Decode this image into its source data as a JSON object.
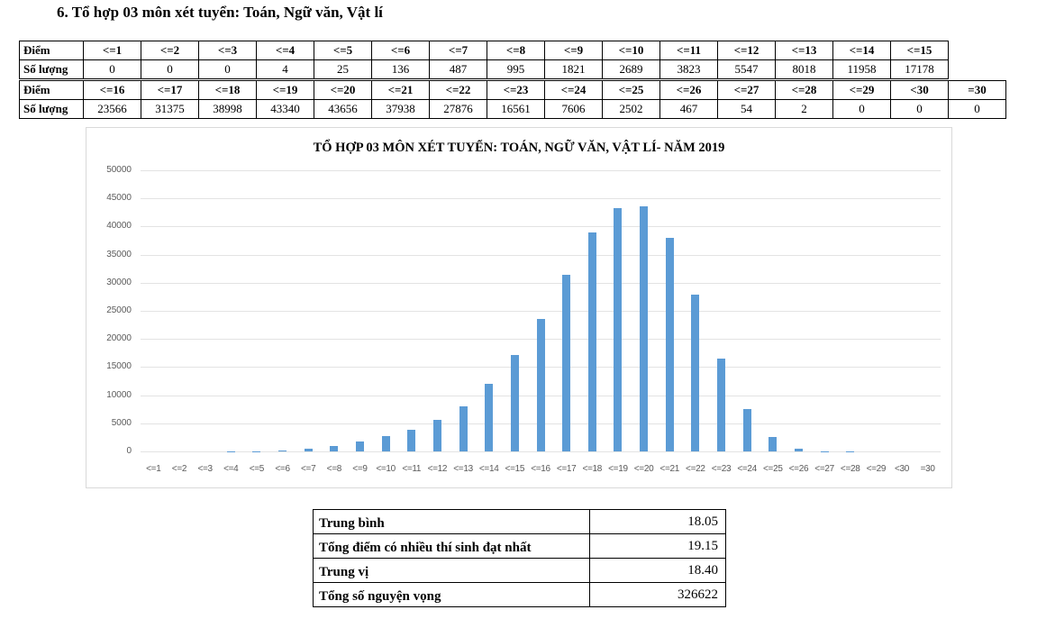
{
  "heading": "6. Tổ hợp 03 môn xét tuyển: Toán, Ngữ văn, Vật lí",
  "score_table": {
    "row_label_score": "Điểm",
    "row_label_count": "Số lượng",
    "top": {
      "scores": [
        "<=1",
        "<=2",
        "<=3",
        "<=4",
        "<=5",
        "<=6",
        "<=7",
        "<=8",
        "<=9",
        "<=10",
        "<=11",
        "<=12",
        "<=13",
        "<=14",
        "<=15"
      ],
      "counts": [
        "0",
        "0",
        "0",
        "4",
        "25",
        "136",
        "487",
        "995",
        "1821",
        "2689",
        "3823",
        "5547",
        "8018",
        "11958",
        "17178"
      ]
    },
    "bottom": {
      "scores": [
        "<=16",
        "<=17",
        "<=18",
        "<=19",
        "<=20",
        "<=21",
        "<=22",
        "<=23",
        "<=24",
        "<=25",
        "<=26",
        "<=27",
        "<=28",
        "<=29",
        "<30",
        "=30"
      ],
      "counts": [
        "23566",
        "31375",
        "38998",
        "43340",
        "43656",
        "37938",
        "27876",
        "16561",
        "7606",
        "2502",
        "467",
        "54",
        "2",
        "0",
        "0",
        "0"
      ]
    }
  },
  "chart_data": {
    "type": "bar",
    "title": "TỔ HỢP 03 MÔN XÉT TUYỂN: TOÁN, NGỮ VĂN, VẬT LÍ- NĂM 2019",
    "xlabel": "",
    "ylabel": "",
    "ylim": [
      0,
      50000
    ],
    "yticks": [
      0,
      5000,
      10000,
      15000,
      20000,
      25000,
      30000,
      35000,
      40000,
      45000,
      50000
    ],
    "grid": true,
    "legend": null,
    "bar_color": "#5b9bd5",
    "categories": [
      "<=1",
      "<=2",
      "<=3",
      "<=4",
      "<=5",
      "<=6",
      "<=7",
      "<=8",
      "<=9",
      "<=10",
      "<=11",
      "<=12",
      "<=13",
      "<=14",
      "<=15",
      "<=16",
      "<=17",
      "<=18",
      "<=19",
      "<=20",
      "<=21",
      "<=22",
      "<=23",
      "<=24",
      "<=25",
      "<=26",
      "<=27",
      "<=28",
      "<=29",
      "<30",
      "=30"
    ],
    "values": [
      0,
      0,
      0,
      4,
      25,
      136,
      487,
      995,
      1821,
      2689,
      3823,
      5547,
      8018,
      11958,
      17178,
      23566,
      31375,
      38998,
      43340,
      43656,
      37938,
      27876,
      16561,
      7606,
      2502,
      467,
      54,
      2,
      0,
      0,
      0
    ]
  },
  "stats": [
    {
      "label": "Trung bình",
      "value": "18.05"
    },
    {
      "label": "Tổng điểm có nhiều thí sinh đạt nhất",
      "value": "19.15"
    },
    {
      "label": "Trung vị",
      "value": "18.40"
    },
    {
      "label": "Tổng số nguyện vọng",
      "value": "326622"
    }
  ]
}
